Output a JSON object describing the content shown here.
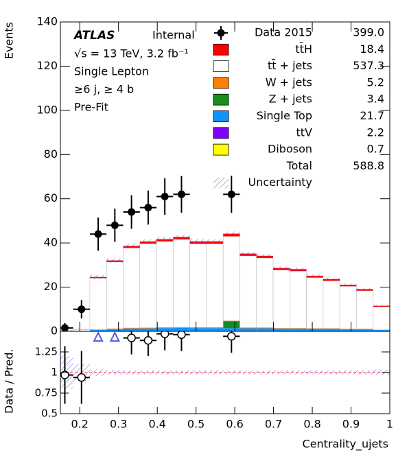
{
  "chart_data": {
    "type": "stacked_histogram",
    "experiment": "ATLAS",
    "status": "Internal",
    "annotations": [
      "√s = 13 TeV, 3.2 fb⁻¹",
      "Single Lepton",
      "≥6 j, ≥ 4 b",
      "Pre-Fit"
    ],
    "ylabel": "Events",
    "xlabel": "Centrality_ujets",
    "xlim": [
      0.15,
      1.0
    ],
    "xticks": [
      0.2,
      0.3,
      0.4,
      0.5,
      0.6,
      0.7,
      0.8,
      0.9,
      1
    ],
    "ylim": [
      0,
      140
    ],
    "yticks": [
      0,
      20,
      40,
      60,
      80,
      100,
      120,
      140
    ],
    "bins": [
      0.14,
      0.183,
      0.226,
      0.269,
      0.312,
      0.355,
      0.398,
      0.441,
      0.484,
      0.527,
      0.57,
      0.613,
      0.656,
      0.699,
      0.742,
      0.785,
      0.828,
      0.871,
      0.914,
      0.957,
      1.0
    ],
    "data": {
      "name": "Data 2015",
      "yield": "399.0",
      "values": [
        1.5,
        10,
        44,
        48,
        54,
        56,
        61,
        62,
        null,
        null,
        62,
        null,
        null,
        null,
        null,
        null,
        null,
        null,
        null,
        null
      ],
      "errors": [
        2.2,
        4.2,
        7.5,
        7.5,
        7.6,
        7.7,
        8.3,
        8.3,
        null,
        null,
        8.4,
        null,
        null,
        null,
        null,
        null,
        null,
        null,
        null,
        null
      ]
    },
    "series": [
      {
        "name": "Diboson",
        "yield": "0.7",
        "color": "#ffff00",
        "values": [
          0,
          0,
          0,
          0,
          0.05,
          0.05,
          0.05,
          0.05,
          0.05,
          0.05,
          0.05,
          0.05,
          0.05,
          0.05,
          0.05,
          0.05,
          0.05,
          0,
          0,
          0
        ]
      },
      {
        "name": "ttV",
        "yield": "2.2",
        "color": "#7f00ff",
        "values": [
          0,
          0,
          0.1,
          0.1,
          0.1,
          0.1,
          0.15,
          0.15,
          0.15,
          0.15,
          0.15,
          0.15,
          0.15,
          0.1,
          0.1,
          0.1,
          0.1,
          0.1,
          0.1,
          0.1
        ]
      },
      {
        "name": "Single Top",
        "yield": "21.7",
        "color": "#0f94ff",
        "values": [
          0,
          0.2,
          0.5,
          0.8,
          1.1,
          1.2,
          1.3,
          1.4,
          1.3,
          1.3,
          1.3,
          1.2,
          1.2,
          1.0,
          1.0,
          0.9,
          0.9,
          0.8,
          0.8,
          0.5
        ]
      },
      {
        "name": "Z + jets",
        "yield": "3.4",
        "color": "#1a8c1a",
        "values": [
          0,
          0,
          0,
          0,
          0,
          0,
          0,
          0,
          0,
          0,
          3,
          0,
          0,
          0,
          0,
          0,
          0,
          0,
          0,
          0
        ]
      },
      {
        "name": "W + jets",
        "yield": "5.2",
        "color": "#ff7f00",
        "values": [
          0,
          0,
          0.2,
          0.3,
          0.3,
          0.3,
          0.3,
          0.3,
          0.3,
          0.3,
          0.3,
          0.3,
          0.3,
          0.3,
          0.3,
          0.3,
          0.3,
          0.2,
          0.2,
          0.1
        ]
      },
      {
        "name": "tt̄ + jets",
        "yield": "537.3",
        "color": "#ffffff",
        "values": [
          0.5,
          0.7,
          23.3,
          30.2,
          36.2,
          38,
          38.9,
          39.7,
          37.8,
          37.8,
          38.2,
          32.5,
          31.5,
          26.3,
          25.8,
          23,
          21.5,
          19.3,
          17.3,
          10.4
        ]
      },
      {
        "name": "tt̄H",
        "yield": "18.4",
        "color": "#ff0000",
        "values": [
          0,
          0.05,
          0.5,
          0.7,
          0.9,
          1,
          1,
          1.1,
          1.1,
          1.1,
          1.2,
          1.0,
          1.0,
          0.9,
          0.9,
          0.8,
          0.8,
          0.7,
          0.7,
          0.5
        ]
      }
    ],
    "legend_order": [
      6,
      5,
      4,
      3,
      2,
      1,
      0
    ],
    "total": {
      "name": "Total",
      "yield": "588.8"
    },
    "uncertainty": {
      "name": "Uncertainty",
      "color": "#5a5ae0",
      "values": [
        0.1,
        0.1,
        1,
        1,
        1,
        1,
        1,
        1,
        1,
        1,
        1,
        0.8,
        0.8,
        0.7,
        0.7,
        0.6,
        0.6,
        0.5,
        0.5,
        0.4
      ]
    },
    "ratio": {
      "ylabel": "Data / Pred.",
      "ylim": [
        0.5,
        1.5
      ],
      "yticks": [
        0.5,
        0.75,
        1,
        1.25
      ],
      "reference": 1,
      "values": [
        0.97,
        0.94,
        1.8,
        1.5,
        1.42,
        1.39,
        1.47,
        1.46,
        null,
        null,
        1.44,
        null,
        null,
        null,
        null,
        null,
        null,
        null,
        null,
        null
      ],
      "errors": [
        0.35,
        0.32,
        null,
        null,
        0.2,
        0.19,
        0.2,
        0.2,
        null,
        null,
        0.2,
        null,
        null,
        null,
        null,
        null,
        null,
        null,
        null,
        null
      ]
    }
  }
}
